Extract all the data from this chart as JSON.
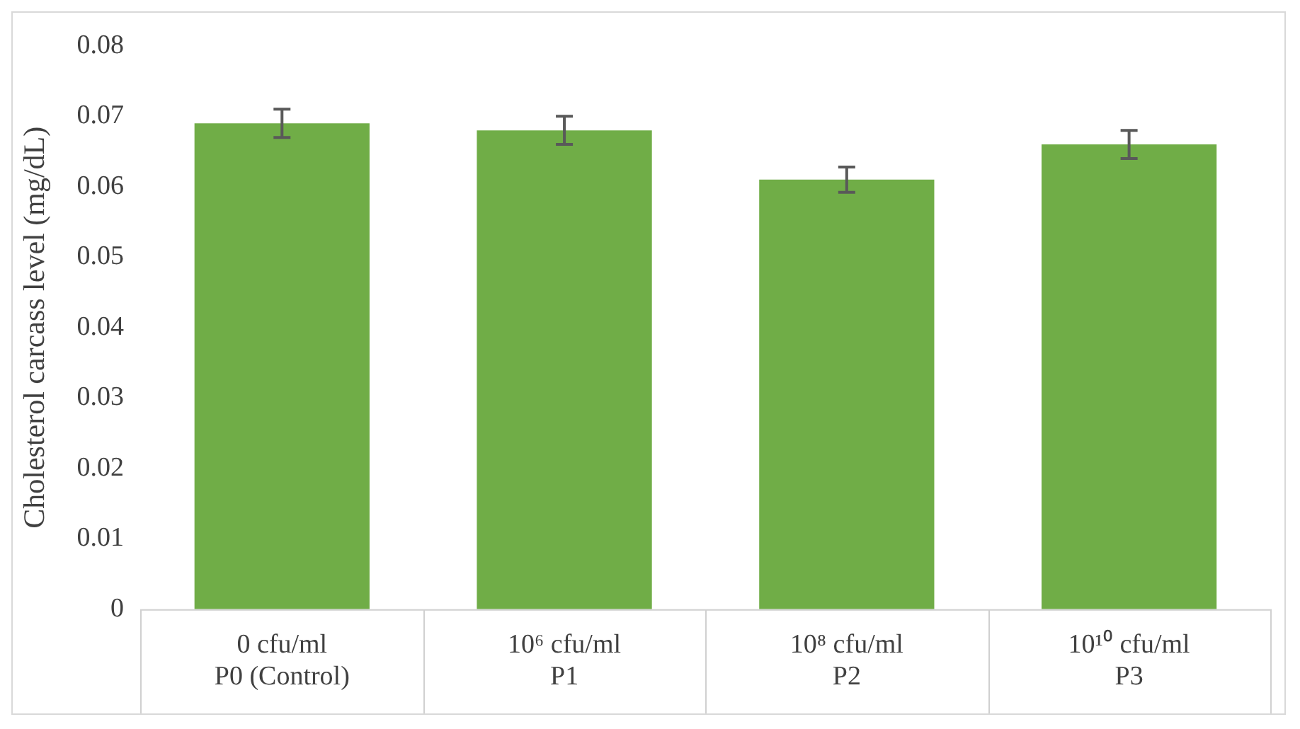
{
  "chart_data": {
    "type": "bar",
    "ylabel": "Cholesterol carcass level (mg/dL)",
    "categories": [
      "0 cfu/ml\nP0 (Control)",
      "10⁶ cfu/ml\nP1",
      "10⁸ cfu/ml\nP2",
      "10¹⁰ cfu/ml\nP3"
    ],
    "values": [
      0.069,
      0.068,
      0.061,
      0.066
    ],
    "errors": [
      0.002,
      0.002,
      0.0018,
      0.002
    ],
    "color": "#70ad47",
    "ylim": [
      0,
      0.08
    ],
    "yticks": [
      0,
      0.01,
      0.02,
      0.03,
      0.04,
      0.05,
      0.06,
      0.07,
      0.08
    ],
    "grid": false
  }
}
